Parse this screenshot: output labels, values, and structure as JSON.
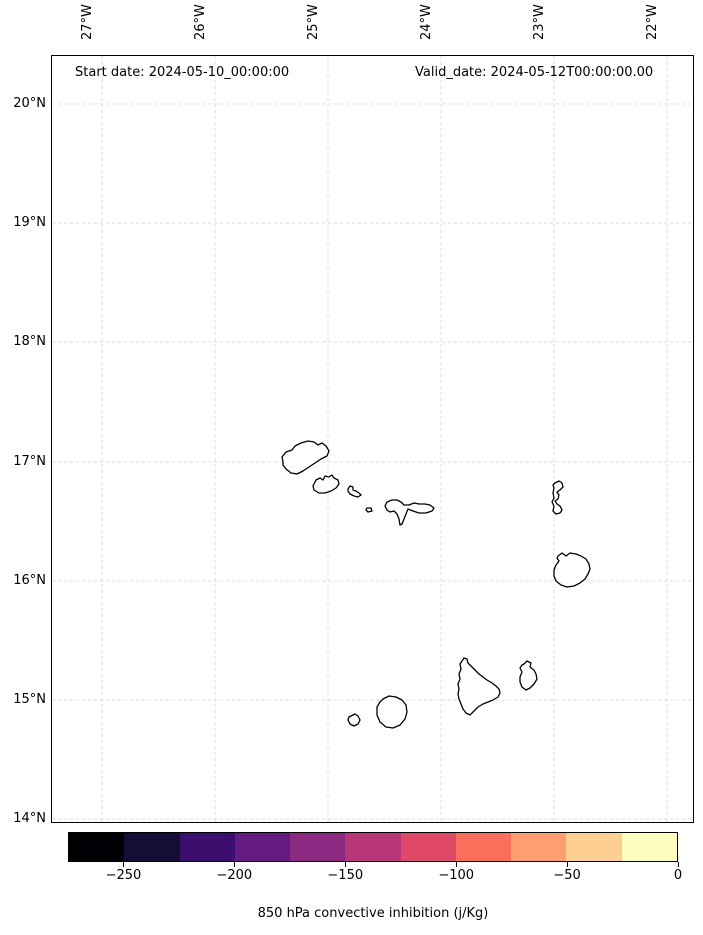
{
  "titles": {
    "start_date": "Start date: 2024-05-10_00:00:00",
    "valid_date": "Valid_date: 2024-05-12T00:00:00.00"
  },
  "axes": {
    "top_ticks": [
      "27°W",
      "26°W",
      "25°W",
      "24°W",
      "23°W",
      "22°W"
    ],
    "left_ticks": [
      "20°N",
      "19°N",
      "18°N",
      "17°N",
      "16°N",
      "15°N",
      "14°N"
    ]
  },
  "colorbar": {
    "label": "850 hPa convective inhibition (j/Kg)",
    "tick_labels": [
      "−250",
      "−200",
      "−150",
      "−100",
      "−50",
      "0"
    ],
    "tick_values": [
      -250,
      -200,
      -150,
      -100,
      -50,
      0
    ],
    "value_range": [
      -275,
      0
    ],
    "n_segments": 11,
    "segment_colors": [
      "#000004",
      "#140e36",
      "#3b0f70",
      "#641a80",
      "#8c2981",
      "#b73779",
      "#de4968",
      "#f7705c",
      "#fe9f6d",
      "#fecf92",
      "#fcfdbf"
    ],
    "outline_color": "#000000"
  },
  "map": {
    "background": "#ffffff",
    "gridline_color": "#dcdcdc",
    "coastline_color": "#000000",
    "land_fill": "#ffffff",
    "islands": [
      {
        "name": "santo-antao",
        "points": [
          [
            283,
            462
          ],
          [
            282,
            457
          ],
          [
            286,
            452
          ],
          [
            292,
            450
          ],
          [
            295,
            446
          ],
          [
            301,
            443
          ],
          [
            308,
            441
          ],
          [
            314,
            442
          ],
          [
            318,
            445
          ],
          [
            322,
            443
          ],
          [
            326,
            446
          ],
          [
            329,
            451
          ],
          [
            327,
            456
          ],
          [
            321,
            459
          ],
          [
            315,
            463
          ],
          [
            309,
            467
          ],
          [
            303,
            471
          ],
          [
            297,
            474
          ],
          [
            291,
            473
          ],
          [
            286,
            469
          ],
          [
            283,
            465
          ]
        ]
      },
      {
        "name": "sao-vicente",
        "points": [
          [
            313,
            486
          ],
          [
            316,
            480
          ],
          [
            320,
            478
          ],
          [
            323,
            480
          ],
          [
            325,
            476
          ],
          [
            329,
            477
          ],
          [
            332,
            475
          ],
          [
            334,
            478
          ],
          [
            338,
            480
          ],
          [
            339,
            484
          ],
          [
            336,
            488
          ],
          [
            331,
            491
          ],
          [
            325,
            493
          ],
          [
            319,
            493
          ],
          [
            314,
            490
          ]
        ]
      },
      {
        "name": "santa-luzia",
        "points": [
          [
            348,
            489
          ],
          [
            350,
            486
          ],
          [
            353,
            487
          ],
          [
            353,
            490
          ],
          [
            356,
            491
          ],
          [
            359,
            493
          ],
          [
            361,
            495
          ],
          [
            358,
            497
          ],
          [
            354,
            496
          ],
          [
            350,
            494
          ],
          [
            348,
            491
          ]
        ]
      },
      {
        "name": "raso-islet",
        "points": [
          [
            367,
            508
          ],
          [
            371,
            508
          ],
          [
            372,
            511
          ],
          [
            368,
            512
          ],
          [
            366,
            510
          ]
        ]
      },
      {
        "name": "sao-nicolau",
        "points": [
          [
            387,
            510
          ],
          [
            385,
            506
          ],
          [
            387,
            502
          ],
          [
            392,
            500
          ],
          [
            397,
            500
          ],
          [
            401,
            502
          ],
          [
            404,
            505
          ],
          [
            409,
            505
          ],
          [
            414,
            503
          ],
          [
            419,
            504
          ],
          [
            425,
            504
          ],
          [
            430,
            505
          ],
          [
            434,
            508
          ],
          [
            432,
            511
          ],
          [
            426,
            513
          ],
          [
            419,
            513
          ],
          [
            413,
            511
          ],
          [
            408,
            509
          ],
          [
            406,
            514
          ],
          [
            404,
            519
          ],
          [
            402,
            524
          ],
          [
            400,
            525
          ],
          [
            399,
            519
          ],
          [
            397,
            514
          ],
          [
            394,
            511
          ],
          [
            390,
            512
          ]
        ]
      },
      {
        "name": "sal",
        "points": [
          [
            555,
            483
          ],
          [
            559,
            481
          ],
          [
            562,
            483
          ],
          [
            563,
            487
          ],
          [
            560,
            490
          ],
          [
            557,
            492
          ],
          [
            559,
            495
          ],
          [
            558,
            499
          ],
          [
            555,
            501
          ],
          [
            557,
            504
          ],
          [
            560,
            506
          ],
          [
            562,
            510
          ],
          [
            560,
            513
          ],
          [
            556,
            514
          ],
          [
            553,
            511
          ],
          [
            554,
            506
          ],
          [
            552,
            502
          ],
          [
            554,
            498
          ],
          [
            553,
            493
          ],
          [
            554,
            488
          ],
          [
            553,
            485
          ]
        ]
      },
      {
        "name": "boa-vista",
        "points": [
          [
            558,
            556
          ],
          [
            562,
            553
          ],
          [
            566,
            556
          ],
          [
            570,
            553
          ],
          [
            576,
            554
          ],
          [
            581,
            556
          ],
          [
            586,
            559
          ],
          [
            589,
            564
          ],
          [
            590,
            569
          ],
          [
            588,
            574
          ],
          [
            585,
            579
          ],
          [
            580,
            583
          ],
          [
            574,
            586
          ],
          [
            567,
            587
          ],
          [
            561,
            585
          ],
          [
            556,
            581
          ],
          [
            554,
            576
          ],
          [
            554,
            570
          ],
          [
            556,
            565
          ],
          [
            559,
            561
          ],
          [
            557,
            558
          ]
        ]
      },
      {
        "name": "maio",
        "points": [
          [
            524,
            664
          ],
          [
            527,
            661
          ],
          [
            531,
            663
          ],
          [
            530,
            667
          ],
          [
            534,
            670
          ],
          [
            536,
            674
          ],
          [
            537,
            679
          ],
          [
            534,
            684
          ],
          [
            530,
            688
          ],
          [
            526,
            690
          ],
          [
            522,
            687
          ],
          [
            520,
            682
          ],
          [
            520,
            677
          ],
          [
            522,
            672
          ],
          [
            520,
            668
          ],
          [
            522,
            665
          ]
        ]
      },
      {
        "name": "santiago",
        "points": [
          [
            462,
            661
          ],
          [
            464,
            658
          ],
          [
            467,
            659
          ],
          [
            468,
            663
          ],
          [
            471,
            666
          ],
          [
            475,
            670
          ],
          [
            479,
            674
          ],
          [
            483,
            677
          ],
          [
            487,
            680
          ],
          [
            492,
            683
          ],
          [
            496,
            686
          ],
          [
            499,
            689
          ],
          [
            500,
            693
          ],
          [
            498,
            697
          ],
          [
            493,
            700
          ],
          [
            488,
            702
          ],
          [
            483,
            704
          ],
          [
            478,
            707
          ],
          [
            474,
            711
          ],
          [
            470,
            715
          ],
          [
            466,
            713
          ],
          [
            463,
            709
          ],
          [
            461,
            704
          ],
          [
            459,
            699
          ],
          [
            458,
            694
          ],
          [
            459,
            689
          ],
          [
            458,
            684
          ],
          [
            460,
            679
          ],
          [
            459,
            674
          ],
          [
            461,
            669
          ],
          [
            460,
            664
          ]
        ]
      },
      {
        "name": "fogo",
        "points": [
          [
            383,
            699
          ],
          [
            389,
            696
          ],
          [
            396,
            697
          ],
          [
            402,
            700
          ],
          [
            406,
            705
          ],
          [
            407,
            712
          ],
          [
            405,
            719
          ],
          [
            400,
            725
          ],
          [
            393,
            728
          ],
          [
            386,
            727
          ],
          [
            380,
            722
          ],
          [
            377,
            715
          ],
          [
            377,
            707
          ],
          [
            380,
            702
          ]
        ]
      },
      {
        "name": "brava",
        "points": [
          [
            351,
            716
          ],
          [
            355,
            714
          ],
          [
            358,
            716
          ],
          [
            360,
            720
          ],
          [
            358,
            724
          ],
          [
            354,
            726
          ],
          [
            350,
            724
          ],
          [
            348,
            720
          ],
          [
            349,
            717
          ]
        ]
      }
    ]
  },
  "chart_data": {
    "type": "heatmap",
    "title": "",
    "annotations": [
      "Start date: 2024-05-10_00:00:00",
      "Valid_date: 2024-05-12T00:00:00.00"
    ],
    "x_tick_labels": [
      "27°W",
      "26°W",
      "25°W",
      "24°W",
      "23°W",
      "22°W"
    ],
    "y_tick_labels": [
      "20°N",
      "19°N",
      "18°N",
      "17°N",
      "16°N",
      "15°N",
      "14°N"
    ],
    "grid": "dashed, light gray",
    "legend_position": "horizontal colorbar, bottom",
    "colorbar": {
      "label": "850 hPa convective inhibition (j/Kg)",
      "ticks": [
        -250,
        -200,
        -150,
        -100,
        -50,
        0
      ],
      "value_range": [
        -275,
        0
      ],
      "n_segments": 11,
      "segment_width_units": 25,
      "colormap": "magma (discrete, 11 levels)"
    },
    "field_values": "no filled contour values visible; map area is blank white showing only Cape Verde island coastlines"
  }
}
